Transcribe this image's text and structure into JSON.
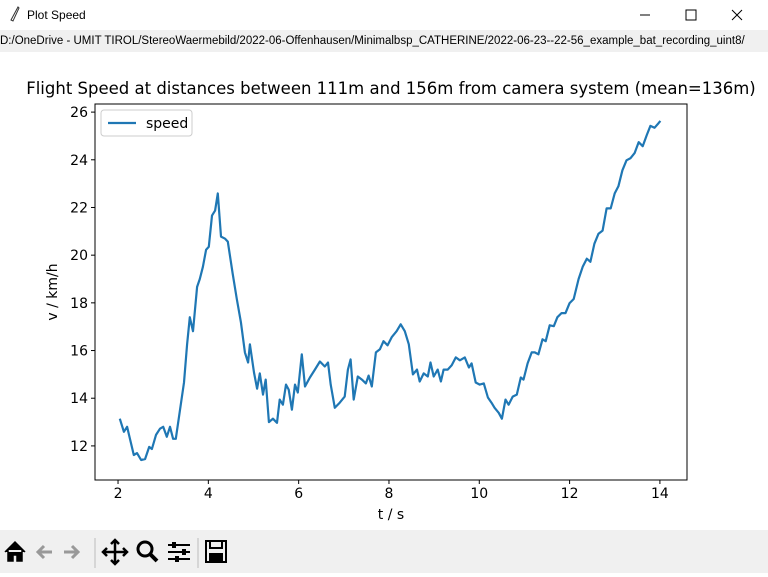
{
  "window_title": "Plot Speed",
  "path": "D:/OneDrive - UMIT TIROL/StereoWaermebild/2022-06-Offenhausen/Minimalbsp_CATHERINE/2022-06-23--22-56_example_bat_recording_uint8/",
  "chart_data": {
    "type": "line",
    "title": "Flight Speed  at distances between 111m and 156m from camera system (mean=136m)",
    "xlabel": "t / s",
    "ylabel": "v / km/h",
    "x": [
      2.04,
      2.13,
      2.2,
      2.27,
      2.35,
      2.42,
      2.51,
      2.6,
      2.69,
      2.75,
      2.84,
      2.93,
      3.0,
      3.08,
      3.15,
      3.22,
      3.28,
      3.37,
      3.46,
      3.53,
      3.59,
      3.66,
      3.75,
      3.81,
      3.88,
      3.95,
      4.01,
      4.08,
      4.15,
      4.21,
      4.28,
      4.37,
      4.43,
      4.54,
      4.63,
      4.72,
      4.81,
      4.88,
      4.92,
      5.01,
      5.08,
      5.14,
      5.21,
      5.27,
      5.34,
      5.43,
      5.52,
      5.58,
      5.65,
      5.72,
      5.78,
      5.85,
      5.92,
      5.98,
      6.07,
      6.14,
      6.25,
      6.36,
      6.47,
      6.58,
      6.65,
      6.71,
      6.8,
      6.91,
      7.02,
      7.09,
      7.15,
      7.22,
      7.31,
      7.4,
      7.49,
      7.55,
      7.62,
      7.71,
      7.8,
      7.88,
      7.97,
      8.06,
      8.17,
      8.26,
      8.35,
      8.44,
      8.53,
      8.62,
      8.68,
      8.77,
      8.86,
      8.92,
      8.99,
      9.08,
      9.15,
      9.21,
      9.3,
      9.39,
      9.48,
      9.57,
      9.68,
      9.77,
      9.83,
      9.92,
      10.01,
      10.1,
      10.19,
      10.27,
      10.34,
      10.43,
      10.5,
      10.58,
      10.65,
      10.74,
      10.83,
      10.92,
      10.98,
      11.07,
      11.16,
      11.23,
      11.31,
      11.4,
      11.47,
      11.56,
      11.65,
      11.73,
      11.82,
      11.91,
      12.0,
      12.09,
      12.2,
      12.29,
      12.38,
      12.46,
      12.55,
      12.64,
      12.73,
      12.82,
      12.91,
      13.0,
      13.08,
      13.17,
      13.26,
      13.35,
      13.44,
      13.53,
      13.62,
      13.71,
      13.79,
      13.88,
      13.97,
      14.01
    ],
    "series": [
      {
        "name": "speed",
        "color": "#1f77b4",
        "values": [
          13.14,
          12.59,
          12.8,
          12.25,
          11.62,
          11.7,
          11.41,
          11.45,
          11.96,
          11.87,
          12.46,
          12.72,
          12.8,
          12.38,
          12.8,
          12.3,
          12.3,
          13.48,
          14.66,
          16.26,
          17.4,
          16.81,
          18.67,
          19.0,
          19.51,
          20.23,
          20.35,
          21.66,
          21.87,
          22.59,
          20.78,
          20.69,
          20.57,
          19.22,
          18.16,
          17.19,
          15.92,
          15.5,
          16.26,
          15.08,
          14.4,
          15.04,
          14.15,
          14.78,
          13.0,
          13.14,
          12.97,
          13.94,
          13.73,
          14.57,
          14.36,
          13.52,
          14.57,
          14.24,
          15.84,
          14.49,
          14.87,
          15.2,
          15.54,
          15.33,
          15.5,
          14.57,
          13.6,
          13.81,
          14.07,
          15.2,
          15.63,
          13.94,
          14.91,
          14.78,
          14.62,
          14.95,
          14.49,
          15.92,
          16.05,
          16.39,
          16.22,
          16.56,
          16.81,
          17.1,
          16.81,
          16.26,
          15.0,
          15.2,
          14.7,
          15.04,
          14.91,
          15.5,
          14.91,
          15.2,
          14.7,
          15.2,
          15.2,
          15.38,
          15.71,
          15.59,
          15.71,
          15.29,
          15.46,
          14.66,
          14.57,
          14.62,
          14.03,
          13.81,
          13.6,
          13.39,
          13.14,
          13.94,
          13.73,
          14.07,
          14.15,
          14.87,
          14.78,
          15.46,
          15.92,
          15.92,
          15.84,
          16.47,
          16.39,
          17.06,
          17.02,
          17.4,
          17.57,
          17.57,
          17.99,
          18.16,
          19.0,
          19.51,
          19.85,
          19.72,
          20.48,
          20.9,
          21.03,
          21.96,
          21.96,
          22.59,
          22.89,
          23.56,
          23.98,
          24.07,
          24.28,
          24.74,
          24.57,
          25.04,
          25.42,
          25.34,
          25.54,
          25.63
        ]
      }
    ],
    "xlim": [
      1.49,
      14.6
    ],
    "ylim": [
      10.57,
      26.34
    ],
    "xticks": [
      2,
      4,
      6,
      8,
      10,
      12,
      14
    ],
    "yticks": [
      12,
      14,
      16,
      18,
      20,
      22,
      24,
      26
    ],
    "legend": "upper left"
  }
}
